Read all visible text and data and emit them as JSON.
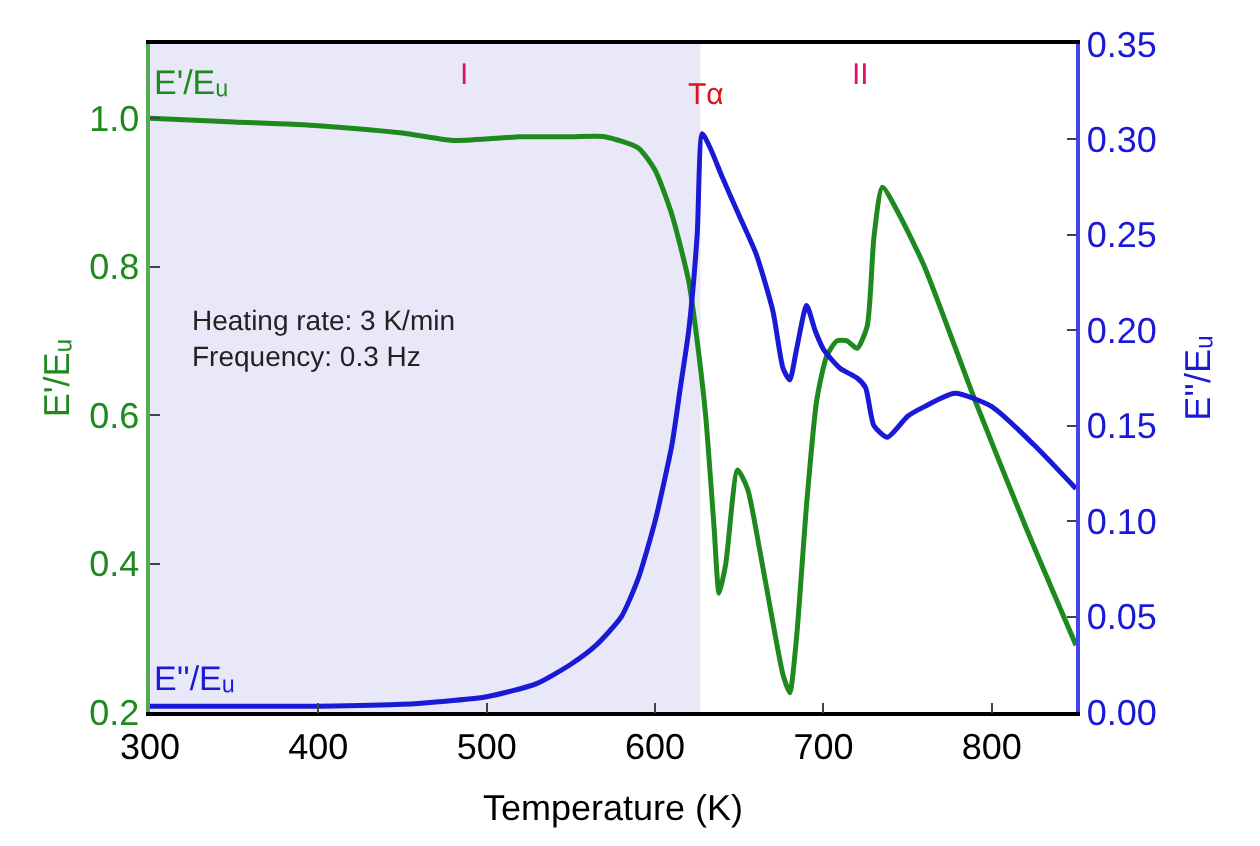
{
  "chart_data": {
    "type": "line",
    "xlabel": "Temperature (K)",
    "ylabel": "E'/Eᵤ",
    "y2label": "E''/Eᵤ",
    "xlim": [
      300,
      850
    ],
    "xticks": [
      300,
      400,
      500,
      600,
      700,
      800
    ],
    "ylim": [
      0.2,
      1.1
    ],
    "yticks": [
      0.2,
      0.4,
      0.6,
      0.8,
      {
        "value": 1,
        "label": "1.0"
      }
    ],
    "y2lim": [
      0,
      0.35
    ],
    "y2ticks": [
      {
        "value": 0,
        "label": "0.00"
      },
      0.05,
      {
        "value": 0.1,
        "label": "0.10"
      },
      0.15,
      {
        "value": 0.2,
        "label": "0.20"
      },
      0.25,
      {
        "value": 0.3,
        "label": "0.30"
      },
      0.35
    ],
    "grid": false,
    "legend": false,
    "marker": "none",
    "line_style": "solid",
    "series": [
      {
        "name": "E'/Eᵤ",
        "color": "#1e8a1e",
        "x": [
          300,
          350,
          400,
          450,
          480,
          520,
          550,
          570,
          590,
          600,
          610,
          620,
          625,
          630,
          635,
          638,
          642,
          649,
          655,
          662,
          670,
          676,
          680,
          684,
          690,
          696,
          702,
          708,
          714,
          720,
          726,
          730,
          735,
          745,
          760,
          790,
          820,
          850
        ],
        "values": [
          1.0,
          0.995,
          0.99,
          0.98,
          0.97,
          0.975,
          0.975,
          0.975,
          0.96,
          0.93,
          0.87,
          0.78,
          0.7,
          0.6,
          0.45,
          0.36,
          0.4,
          0.526,
          0.5,
          0.42,
          0.32,
          0.25,
          0.226,
          0.3,
          0.48,
          0.62,
          0.68,
          0.7,
          0.7,
          0.69,
          0.72,
          0.84,
          0.907,
          0.87,
          0.8,
          0.62,
          0.45,
          0.29
        ]
      },
      {
        "name": "E''/Eᵤ",
        "color": "#1a1ad6",
        "axis": "y2",
        "x": [
          300,
          400,
          450,
          500,
          530,
          550,
          565,
          580,
          590,
          600,
          610,
          615,
          620,
          625,
          628,
          633,
          640,
          650,
          660,
          670,
          676,
          680,
          684,
          690,
          695,
          700,
          710,
          720,
          725,
          730,
          738,
          750,
          760,
          778,
          800,
          825,
          850
        ],
        "values": [
          0.003,
          0.003,
          0.004,
          0.008,
          0.015,
          0.025,
          0.035,
          0.05,
          0.07,
          0.1,
          0.14,
          0.17,
          0.2,
          0.25,
          0.303,
          0.295,
          0.28,
          0.26,
          0.24,
          0.21,
          0.18,
          0.174,
          0.19,
          0.213,
          0.2,
          0.19,
          0.18,
          0.175,
          0.17,
          0.15,
          0.144,
          0.155,
          0.16,
          0.167,
          0.16,
          0.14,
          0.117
        ]
      }
    ],
    "bands": [
      {
        "axis": "x",
        "from": 300,
        "to": 627,
        "color": "#e8e8f8"
      }
    ],
    "annotations": [
      "I",
      "II",
      "Tα",
      "Heating rate: 3 K/min",
      "Frequency: 0.3 Hz"
    ]
  }
}
